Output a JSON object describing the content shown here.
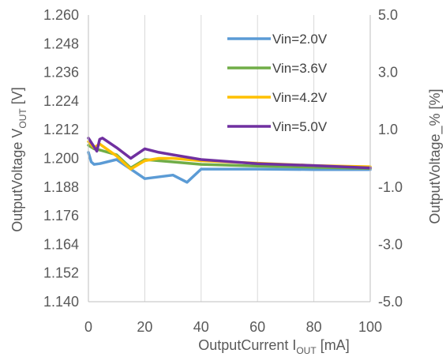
{
  "chart_data": {
    "type": "line",
    "xlabel": {
      "main": "OutputCurrent  I",
      "sub": "OUT",
      "tail": " [mA]"
    },
    "ylabel_left": {
      "main": "OutputVoltage  V",
      "sub": "OUT",
      "tail": " [V]"
    },
    "ylabel_right": "OutputVoltage_% [%]",
    "xlim": [
      0,
      100
    ],
    "ylim_left": [
      1.14,
      1.26
    ],
    "ylim_right": [
      -5.0,
      5.0
    ],
    "x_ticks": [
      "0",
      "20",
      "40",
      "60",
      "80",
      "100"
    ],
    "y_ticks_left": [
      "1.140",
      "1.152",
      "1.164",
      "1.176",
      "1.188",
      "1.200",
      "1.212",
      "1.224",
      "1.236",
      "1.248",
      "1.260"
    ],
    "y_ticks_right": [
      "-5.0",
      "-3.0",
      "-1.0",
      "1.0",
      "3.0",
      "5.0"
    ],
    "grid": "vertical",
    "legend_position": "top-right",
    "series": [
      {
        "name": "Vin=2.0V",
        "color": "#5B9BD5",
        "x": [
          0,
          1,
          2,
          4,
          10,
          15,
          20,
          30,
          35,
          40,
          60,
          80,
          100
        ],
        "y": [
          1.2025,
          1.1985,
          1.1975,
          1.1978,
          1.1995,
          1.1955,
          1.1915,
          1.193,
          1.19,
          1.1955,
          1.1955,
          1.1953,
          1.1953
        ]
      },
      {
        "name": "Vin=3.6V",
        "color": "#70AD47",
        "x": [
          0,
          2,
          4,
          10,
          15,
          20,
          30,
          40,
          60,
          80,
          100
        ],
        "y": [
          1.2055,
          1.204,
          1.2035,
          1.2015,
          1.196,
          1.1995,
          1.1985,
          1.1975,
          1.1968,
          1.1963,
          1.1958
        ]
      },
      {
        "name": "Vin=4.2V",
        "color": "#FFC000",
        "x": [
          0,
          2,
          4,
          10,
          15,
          20,
          25,
          30,
          40,
          60,
          80,
          100
        ],
        "y": [
          1.207,
          1.2045,
          1.206,
          1.201,
          1.1955,
          1.199,
          1.2,
          1.2,
          1.199,
          1.198,
          1.197,
          1.1965
        ]
      },
      {
        "name": "Vin=5.0V",
        "color": "#7030A0",
        "x": [
          0,
          3,
          4,
          5,
          10,
          15,
          20,
          25,
          30,
          40,
          60,
          80,
          100
        ],
        "y": [
          1.2085,
          1.203,
          1.208,
          1.2085,
          1.2045,
          1.2,
          1.204,
          1.2025,
          1.2015,
          1.1995,
          1.1978,
          1.197,
          1.196
        ]
      }
    ]
  }
}
